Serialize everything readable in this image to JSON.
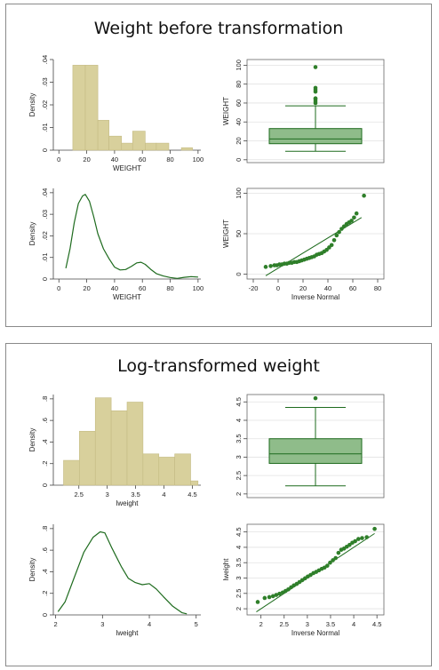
{
  "panels": {
    "top_title": "Weight before transformation",
    "bottom_title": "Log-transformed weight"
  },
  "colors": {
    "bar_fill": "#d8d09c",
    "bar_stroke": "#c4bb84",
    "line_green": "#1e6b1e",
    "box_fill": "#8fbc8a",
    "dot_green": "#2f7f2a",
    "grid": "#e2e2e2"
  },
  "chart_data": [
    {
      "id": "weight-hist",
      "type": "bar",
      "xlabel": "WEIGHT",
      "ylabel": "Density",
      "xlim": [
        -4,
        102
      ],
      "ylim": [
        0,
        0.04
      ],
      "xticks": [
        0,
        20,
        40,
        60,
        80,
        100
      ],
      "yticks": [
        0,
        0.01,
        0.02,
        0.03,
        0.04
      ],
      "ytick_labels": [
        "0",
        ".01",
        ".02",
        ".03",
        ".04"
      ],
      "bins": [
        [
          10,
          19
        ],
        [
          19,
          28
        ],
        [
          28,
          36
        ],
        [
          36,
          45
        ],
        [
          45,
          53
        ],
        [
          53,
          62
        ],
        [
          62,
          70
        ],
        [
          70,
          79
        ],
        [
          88,
          96
        ]
      ],
      "values": [
        0.0375,
        0.0375,
        0.0132,
        0.0062,
        0.0031,
        0.0084,
        0.0031,
        0.0031,
        0.0011
      ]
    },
    {
      "id": "weight-box",
      "type": "box",
      "ylabel": "WEIGHT",
      "ylim": [
        -3,
        106
      ],
      "yticks": [
        0,
        20,
        40,
        60,
        80,
        100
      ],
      "ytick_labels": [
        "0",
        "20",
        "40",
        "60",
        "80",
        "100"
      ],
      "whisker_low": 9,
      "q1": 17,
      "median": 22,
      "q3": 33,
      "whisker_high": 57,
      "outliers": [
        60,
        62,
        64,
        65,
        72,
        74,
        76,
        98
      ]
    },
    {
      "id": "weight-kde",
      "type": "line",
      "xlabel": "WEIGHT",
      "ylabel": "Density",
      "xlim": [
        -4,
        102
      ],
      "ylim": [
        0,
        0.042
      ],
      "xticks": [
        0,
        20,
        40,
        60,
        80,
        100
      ],
      "yticks": [
        0,
        0.01,
        0.02,
        0.03,
        0.04
      ],
      "ytick_labels": [
        "0",
        ".01",
        ".02",
        ".03",
        ".04"
      ],
      "x": [
        5,
        8,
        11,
        14,
        17,
        19,
        22,
        25,
        28,
        32,
        36,
        40,
        44,
        48,
        52,
        56,
        59,
        62,
        66,
        70,
        75,
        80,
        85,
        90,
        95,
        100
      ],
      "y": [
        0.005,
        0.014,
        0.026,
        0.035,
        0.0385,
        0.0392,
        0.036,
        0.029,
        0.021,
        0.014,
        0.0095,
        0.0055,
        0.0042,
        0.0044,
        0.0058,
        0.0075,
        0.0078,
        0.0068,
        0.0045,
        0.0025,
        0.0014,
        0.0007,
        0.0003,
        0.0008,
        0.0011,
        0.0009
      ]
    },
    {
      "id": "weight-qq",
      "type": "scatter",
      "xlabel": "Inverse Normal",
      "ylabel": "WEIGHT",
      "xlim": [
        -25,
        85
      ],
      "ylim": [
        -6,
        106
      ],
      "xticks": [
        -20,
        0,
        20,
        40,
        60,
        80
      ],
      "yticks": [
        0,
        50,
        100
      ],
      "ytick_labels": [
        "0",
        "50",
        "100"
      ],
      "reference_line": [
        [
          -10,
          -2
        ],
        [
          67,
          70
        ]
      ],
      "x": [
        -10,
        -6,
        -3,
        -1,
        1,
        3,
        5,
        7,
        9,
        11,
        13,
        15,
        17,
        19,
        21,
        23,
        25,
        27,
        29,
        31,
        33,
        35,
        37,
        39,
        41,
        43,
        45,
        47,
        49,
        51,
        53,
        55,
        57,
        59,
        61,
        63,
        69
      ],
      "y": [
        9,
        10,
        11,
        11,
        12,
        12,
        13,
        13,
        14,
        14,
        15,
        15,
        16,
        17,
        18,
        19,
        20,
        21,
        22,
        24,
        25,
        26,
        28,
        30,
        33,
        36,
        42,
        48,
        52,
        56,
        59,
        62,
        64,
        66,
        70,
        75,
        97
      ]
    },
    {
      "id": "lweight-hist",
      "type": "bar",
      "xlabel": "lweight",
      "ylabel": "Density",
      "xlim": [
        2.05,
        4.65
      ],
      "ylim": [
        0,
        0.84
      ],
      "xticks": [
        2.5,
        3,
        3.5,
        4,
        4.5
      ],
      "xtick_labels": [
        "2.5",
        "3",
        "3.5",
        "4",
        "4.5"
      ],
      "yticks": [
        0,
        0.2,
        0.4,
        0.6,
        0.8
      ],
      "ytick_labels": [
        "0",
        ".2",
        ".4",
        ".6",
        ".8"
      ],
      "bins": [
        [
          2.23,
          2.51
        ],
        [
          2.51,
          2.79
        ],
        [
          2.79,
          3.07
        ],
        [
          3.07,
          3.35
        ],
        [
          3.35,
          3.63
        ],
        [
          3.63,
          3.91
        ],
        [
          3.91,
          4.19
        ],
        [
          4.19,
          4.47
        ],
        [
          4.47,
          4.6
        ]
      ],
      "values": [
        0.23,
        0.5,
        0.81,
        0.69,
        0.77,
        0.29,
        0.26,
        0.29,
        0.04
      ]
    },
    {
      "id": "lweight-box",
      "type": "box",
      "ylabel": "",
      "ylim": [
        1.9,
        4.7
      ],
      "yticks": [
        2,
        2.5,
        3,
        3.5,
        4,
        4.5
      ],
      "ytick_labels": [
        "2",
        "2.5",
        "3",
        "3.5",
        "4",
        "4.5"
      ],
      "whisker_low": 2.22,
      "q1": 2.83,
      "median": 3.09,
      "q3": 3.5,
      "whisker_high": 4.35,
      "outliers": [
        4.6
      ]
    },
    {
      "id": "lweight-kde",
      "type": "line",
      "xlabel": "lweight",
      "ylabel": "Density",
      "xlim": [
        1.95,
        5.1
      ],
      "ylim": [
        0,
        0.84
      ],
      "xticks": [
        2,
        3,
        4,
        5
      ],
      "yticks": [
        0,
        0.2,
        0.4,
        0.6,
        0.8
      ],
      "ytick_labels": [
        "0",
        ".2",
        ".4",
        ".6",
        ".8"
      ],
      "x": [
        2.05,
        2.2,
        2.4,
        2.6,
        2.8,
        2.95,
        3.05,
        3.2,
        3.4,
        3.55,
        3.7,
        3.85,
        4.0,
        4.15,
        4.3,
        4.5,
        4.7,
        4.8
      ],
      "y": [
        0.03,
        0.12,
        0.35,
        0.58,
        0.72,
        0.77,
        0.76,
        0.62,
        0.45,
        0.34,
        0.3,
        0.28,
        0.29,
        0.24,
        0.17,
        0.08,
        0.02,
        0.01
      ]
    },
    {
      "id": "lweight-qq",
      "type": "scatter",
      "xlabel": "Inverse Normal",
      "ylabel": "lweight",
      "xlim": [
        1.7,
        4.65
      ],
      "ylim": [
        1.8,
        4.75
      ],
      "xticks": [
        2,
        2.5,
        3,
        3.5,
        4,
        4.5
      ],
      "xtick_labels": [
        "2",
        "2.5",
        "3",
        "3.5",
        "4",
        "4.5"
      ],
      "yticks": [
        2,
        2.5,
        3,
        3.5,
        4,
        4.5
      ],
      "ytick_labels": [
        "2",
        "2.5",
        "3",
        "3.5",
        "4",
        "4.5"
      ],
      "reference_line": [
        [
          1.9,
          1.9
        ],
        [
          4.45,
          4.45
        ]
      ],
      "x": [
        1.93,
        2.08,
        2.18,
        2.26,
        2.33,
        2.4,
        2.47,
        2.53,
        2.59,
        2.65,
        2.71,
        2.77,
        2.83,
        2.89,
        2.95,
        3.01,
        3.07,
        3.13,
        3.19,
        3.25,
        3.31,
        3.37,
        3.43,
        3.49,
        3.55,
        3.61,
        3.67,
        3.73,
        3.79,
        3.85,
        3.91,
        3.97,
        4.03,
        4.1,
        4.18,
        4.28,
        4.45
      ],
      "y": [
        2.22,
        2.35,
        2.38,
        2.41,
        2.45,
        2.49,
        2.53,
        2.58,
        2.63,
        2.7,
        2.76,
        2.81,
        2.87,
        2.93,
        2.99,
        3.05,
        3.1,
        3.16,
        3.2,
        3.25,
        3.3,
        3.34,
        3.4,
        3.5,
        3.58,
        3.65,
        3.82,
        3.92,
        3.96,
        4.02,
        4.08,
        4.15,
        4.2,
        4.27,
        4.3,
        4.33,
        4.6
      ]
    }
  ]
}
